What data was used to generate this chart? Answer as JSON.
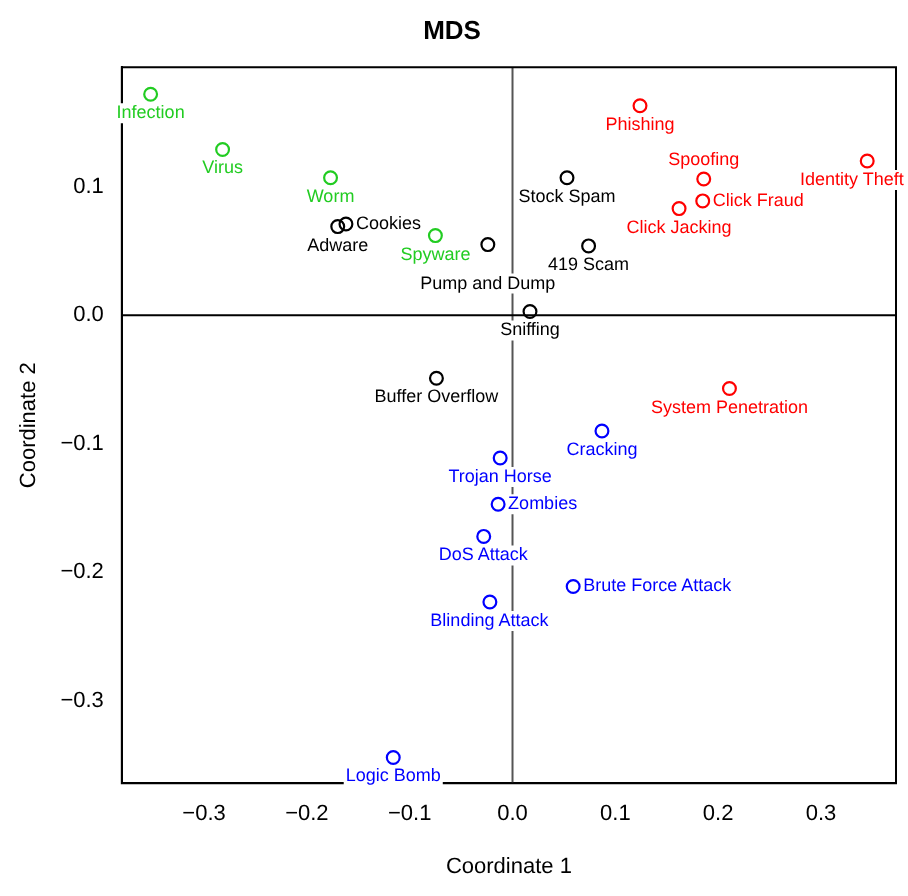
{
  "chart_data": {
    "type": "scatter",
    "title": "MDS",
    "xlabel": "Coordinate 1",
    "ylabel": "Coordinate 2",
    "xlim": [
      -0.38,
      0.373
    ],
    "ylim": [
      -0.364,
      0.193
    ],
    "xticks": [
      -0.3,
      -0.2,
      -0.1,
      {
        "value": 0,
        "label": "0.0"
      },
      0.1,
      0.2,
      0.3
    ],
    "yticks": [
      -0.3,
      -0.2,
      -0.1,
      {
        "value": 0,
        "label": "0.0"
      },
      0.1
    ],
    "grid": false,
    "legend": false,
    "marker": "circle",
    "ref_lines": [
      {
        "axis": "x",
        "value": 0,
        "color": "#555555"
      },
      {
        "axis": "y",
        "value": 0,
        "color": "#000000"
      }
    ],
    "series": [
      {
        "color": "#22cc22",
        "x": [
          -0.352,
          -0.282,
          -0.177,
          -0.075
        ],
        "values": [
          0.172,
          0.129,
          0.107,
          0.062
        ]
      },
      {
        "color": "#ff0000",
        "x": [
          0.124,
          0.186,
          0.185,
          0.162,
          0.345,
          0.211
        ],
        "values": [
          0.163,
          0.106,
          0.089,
          0.083,
          0.12,
          -0.057
        ]
      },
      {
        "color": "#000000",
        "x": [
          -0.162,
          -0.17,
          -0.024,
          0.053,
          0.074,
          0.017,
          -0.074
        ],
        "values": [
          0.071,
          0.069,
          0.055,
          0.107,
          0.054,
          0.003,
          -0.049
        ]
      },
      {
        "color": "#0000ff",
        "x": [
          0.087,
          -0.012,
          -0.014,
          -0.028,
          -0.022,
          0.059,
          -0.116
        ],
        "values": [
          -0.09,
          -0.111,
          -0.147,
          -0.172,
          -0.223,
          -0.211,
          -0.344
        ]
      }
    ],
    "annotations": [
      {
        "text": "Infection",
        "x": -0.352,
        "y": 0.172
      },
      {
        "text": "Virus",
        "x": -0.282,
        "y": 0.129
      },
      {
        "text": "Worm",
        "x": -0.177,
        "y": 0.107
      },
      {
        "text": "Spyware",
        "x": -0.075,
        "y": 0.062
      },
      {
        "text": "Phishing",
        "x": 0.124,
        "y": 0.163
      },
      {
        "text": "Spoofing",
        "x": 0.186,
        "y": 0.106
      },
      {
        "text": "Click Fraud",
        "x": 0.185,
        "y": 0.089
      },
      {
        "text": "Click Jacking",
        "x": 0.162,
        "y": 0.083
      },
      {
        "text": "Identity Theft",
        "x": 0.345,
        "y": 0.12
      },
      {
        "text": "System Penetration",
        "x": 0.211,
        "y": -0.057
      },
      {
        "text": "Cookies",
        "x": -0.162,
        "y": 0.071
      },
      {
        "text": "Adware",
        "x": -0.17,
        "y": 0.069
      },
      {
        "text": "Pump and Dump",
        "x": -0.024,
        "y": 0.055
      },
      {
        "text": "Stock Spam",
        "x": 0.053,
        "y": 0.107
      },
      {
        "text": "419 Scam",
        "x": 0.074,
        "y": 0.054
      },
      {
        "text": "Sniffing",
        "x": 0.017,
        "y": 0.003
      },
      {
        "text": "Buffer Overflow",
        "x": -0.074,
        "y": -0.049
      },
      {
        "text": "Cracking",
        "x": 0.087,
        "y": -0.09
      },
      {
        "text": "Trojan Horse",
        "x": -0.012,
        "y": -0.111
      },
      {
        "text": "Zombies",
        "x": -0.014,
        "y": -0.147
      },
      {
        "text": "DoS Attack",
        "x": -0.028,
        "y": -0.172
      },
      {
        "text": "Blinding Attack",
        "x": -0.022,
        "y": -0.223
      },
      {
        "text": "Brute Force Attack",
        "x": 0.059,
        "y": -0.211
      },
      {
        "text": "Logic Bomb",
        "x": -0.116,
        "y": -0.344
      }
    ]
  }
}
